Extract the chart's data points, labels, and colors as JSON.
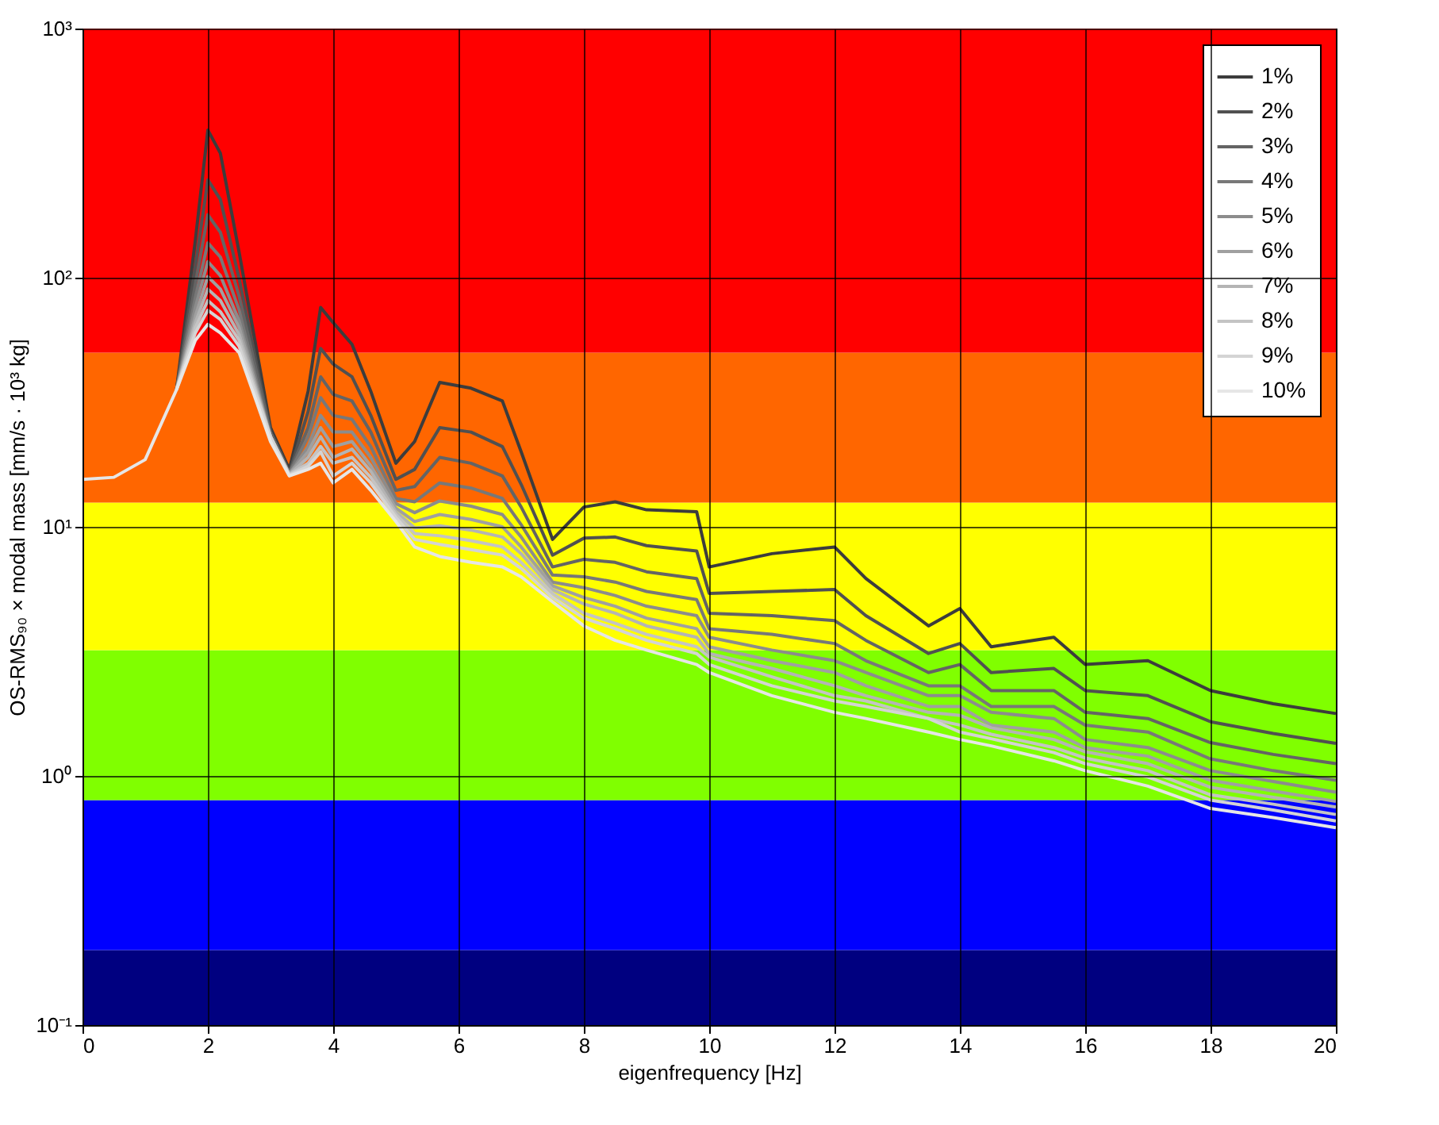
{
  "chart_data": {
    "type": "line",
    "xlabel": "eigenfrequency [Hz]",
    "ylabel": "OS-RMS₉₀ × modal mass [mm/s · 10³ kg]",
    "log": "y",
    "grid": true,
    "legend": "top right",
    "marker": "none",
    "line_style": "solid",
    "xlim": [
      0,
      20
    ],
    "xticks": [
      0,
      2,
      4,
      6,
      8,
      10,
      12,
      14,
      16,
      18,
      20
    ],
    "ylim": [
      0.1,
      1000
    ],
    "yticks": [
      {
        "value": 0.1,
        "label": "10⁻¹"
      },
      {
        "value": 1,
        "label": "10⁰"
      },
      {
        "value": 10,
        "label": "10¹"
      },
      {
        "value": 100,
        "label": "10²"
      },
      {
        "value": 1000,
        "label": "10³"
      }
    ],
    "bands": [
      {
        "axis": "y",
        "from": 0.1,
        "to": 0.2,
        "color": "#000080"
      },
      {
        "axis": "y",
        "from": 0.2,
        "to": 0.8,
        "color": "#0000ff"
      },
      {
        "axis": "y",
        "from": 0.8,
        "to": 3.2,
        "color": "#80ff00"
      },
      {
        "axis": "y",
        "from": 3.2,
        "to": 12.5,
        "color": "#ffff00"
      },
      {
        "axis": "y",
        "from": 12.5,
        "to": 50,
        "color": "#ff6600"
      },
      {
        "axis": "y",
        "from": 50,
        "to": 1000,
        "color": "#ff0000"
      }
    ],
    "x": [
      0,
      0.5,
      1,
      1.5,
      1.8,
      2,
      2.2,
      2.5,
      3,
      3.3,
      3.6,
      3.8,
      4,
      4.3,
      4.6,
      5,
      5.3,
      5.7,
      6.2,
      6.7,
      7,
      7.5,
      8,
      8.5,
      9,
      9.8,
      10,
      11,
      12,
      12.5,
      13.5,
      14,
      14.5,
      15.5,
      16,
      17,
      18,
      19,
      20
    ],
    "series": [
      {
        "name": "1%",
        "color": "#3c3c3c",
        "values": [
          null,
          null,
          null,
          35.5,
          141,
          391,
          316,
          126,
          25,
          17,
          35,
          76,
          66,
          54,
          35,
          18,
          22,
          38,
          36,
          32,
          20,
          8.9,
          12,
          12.6,
          11.7,
          11.5,
          6.9,
          7.8,
          8.3,
          6.2,
          4.0,
          4.7,
          3.3,
          3.6,
          2.8,
          2.9,
          2.2,
          1.95,
          1.78
        ]
      },
      {
        "name": "2%",
        "color": "#505050",
        "values": [
          null,
          null,
          null,
          35.5,
          111,
          247,
          206,
          99,
          24,
          16.5,
          29,
          52,
          45,
          40,
          28,
          15.5,
          17,
          25,
          24,
          21,
          14.8,
          7.7,
          9,
          9.1,
          8.4,
          8,
          5.4,
          5.5,
          5.6,
          4.4,
          3.1,
          3.4,
          2.6,
          2.7,
          2.2,
          2.1,
          1.65,
          1.48,
          1.35
        ]
      },
      {
        "name": "3%",
        "color": "#646464",
        "values": [
          null,
          null,
          null,
          35.5,
          94,
          179,
          152,
          84,
          24,
          16.5,
          25,
          40,
          34,
          32,
          24,
          14,
          14.5,
          19,
          18,
          16,
          12,
          6.9,
          7.4,
          7.2,
          6.6,
          6.2,
          4.5,
          4.4,
          4.2,
          3.5,
          2.6,
          2.8,
          2.2,
          2.2,
          1.8,
          1.7,
          1.36,
          1.22,
          1.12
        ]
      },
      {
        "name": "4%",
        "color": "#787878",
        "values": [
          null,
          null,
          null,
          35.5,
          83,
          138,
          121,
          74,
          23,
          16.4,
          23,
          33,
          28,
          27,
          21,
          13,
          12.6,
          15,
          14.3,
          13,
          10.2,
          6.4,
          6.3,
          6.0,
          5.5,
          5.1,
          3.9,
          3.7,
          3.4,
          2.9,
          2.3,
          2.3,
          1.9,
          1.9,
          1.6,
          1.5,
          1.17,
          1.05,
          0.96
        ]
      },
      {
        "name": "5%",
        "color": "#8c8c8c",
        "values": [
          null,
          null,
          null,
          35.5,
          76,
          116,
          102,
          67,
          23,
          16.3,
          21,
          28,
          24,
          24,
          19,
          12.4,
          11.4,
          12.7,
          12.1,
          11.2,
          9.1,
          6.0,
          5.7,
          5.3,
          4.8,
          4.4,
          3.6,
          3.2,
          2.9,
          2.6,
          2.1,
          2.1,
          1.8,
          1.7,
          1.4,
          1.3,
          1.05,
          0.95,
          0.86
        ]
      },
      {
        "name": "6%",
        "color": "#a0a0a0",
        "values": [
          null,
          null,
          null,
          35.5,
          70,
          101,
          90,
          63,
          23,
          16.3,
          20,
          25,
          21,
          22,
          17.6,
          11.9,
          10.5,
          11.2,
          10.7,
          10,
          8.3,
          5.8,
          5.2,
          4.8,
          4.3,
          3.9,
          3.3,
          2.9,
          2.6,
          2.3,
          1.9,
          1.9,
          1.6,
          1.5,
          1.3,
          1.2,
          0.96,
          0.87,
          0.79
        ]
      },
      {
        "name": "7%",
        "color": "#b4b4b4",
        "values": [
          null,
          null,
          null,
          35.5,
          66,
          90,
          81,
          59,
          23,
          16.2,
          19,
          23,
          19,
          20.5,
          16.7,
          11.5,
          9.9,
          10.1,
          9.7,
          9.1,
          7.8,
          5.6,
          4.9,
          4.5,
          4.0,
          3.6,
          3.1,
          2.7,
          2.3,
          2.1,
          1.8,
          1.75,
          1.56,
          1.4,
          1.25,
          1.12,
          0.9,
          0.82,
          0.75
        ]
      },
      {
        "name": "8%",
        "color": "#c4c4c4",
        "values": [
          null,
          null,
          null,
          35.5,
          63,
          81,
          73,
          56,
          23,
          16.2,
          18,
          21,
          18,
          19,
          15.8,
          11.2,
          9.4,
          9.2,
          8.8,
          8.3,
          7.2,
          5.4,
          4.5,
          4.1,
          3.7,
          3.3,
          3.0,
          2.5,
          2.1,
          2.0,
          1.7,
          1.6,
          1.47,
          1.3,
          1.18,
          1.05,
          0.84,
          0.77,
          0.7
        ]
      },
      {
        "name": "9%",
        "color": "#d4d4d4",
        "values": [
          null,
          null,
          null,
          35.5,
          60,
          74,
          68,
          53,
          23,
          16.1,
          17.5,
          20,
          16,
          18,
          15,
          10.9,
          8.9,
          8.5,
          8.1,
          7.7,
          6.8,
          5.2,
          4.3,
          3.9,
          3.5,
          3.1,
          2.8,
          2.3,
          2.0,
          1.9,
          1.7,
          1.5,
          1.41,
          1.24,
          1.12,
          0.99,
          0.8,
          0.73,
          0.66
        ]
      },
      {
        "name": "10%",
        "color": "#e6e6e6",
        "values": [
          15.5,
          15.8,
          18.6,
          35.5,
          56,
          65,
          60,
          50,
          22,
          16,
          17,
          18,
          15,
          17,
          14,
          10.5,
          8.3,
          7.6,
          7.2,
          6.9,
          6.3,
          5.0,
          4.0,
          3.5,
          3.2,
          2.8,
          2.6,
          2.1,
          1.8,
          1.7,
          1.5,
          1.4,
          1.32,
          1.15,
          1.05,
          0.91,
          0.74,
          0.68,
          0.62
        ]
      }
    ]
  }
}
